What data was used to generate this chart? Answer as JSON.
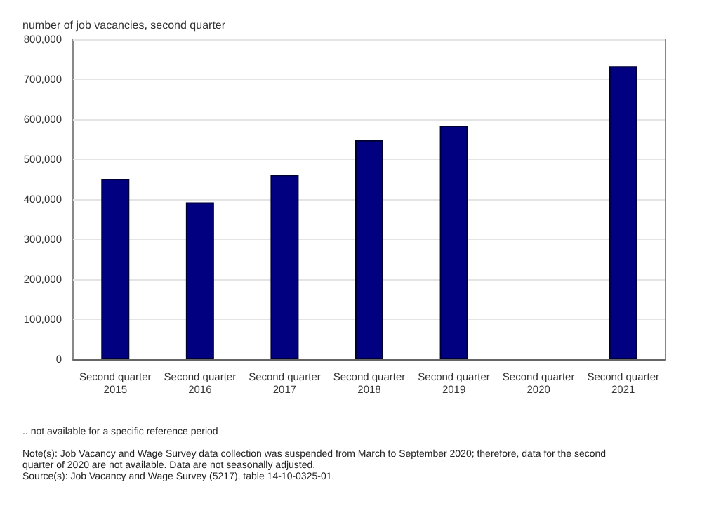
{
  "chart_data": {
    "type": "bar",
    "ylabel": "number of job vacancies, second quarter",
    "categories": [
      "Second quarter\n2015",
      "Second quarter\n2016",
      "Second quarter\n2017",
      "Second quarter\n2018",
      "Second quarter\n2019",
      "Second quarter\n2020",
      "Second quarter\n2021"
    ],
    "values": [
      451000,
      392000,
      461000,
      548000,
      584000,
      null,
      733000
    ],
    "color": "#000080",
    "ylim": [
      0,
      800000
    ],
    "yticks": [
      0,
      {
        "value": 100000,
        "label": "100,000"
      },
      {
        "value": 200000,
        "label": "200,000"
      },
      {
        "value": 300000,
        "label": "300,000"
      },
      {
        "value": 400000,
        "label": "400,000"
      },
      {
        "value": 500000,
        "label": "500,000"
      },
      {
        "value": 600000,
        "label": "600,000"
      },
      {
        "value": 700000,
        "label": "700,000"
      },
      {
        "value": 800000,
        "label": "800,000"
      }
    ],
    "grid": "y",
    "annotations": [
      ".. not available for a specific reference period",
      "Note(s): Job Vacancy and Wage Survey data collection was suspended from March to September 2020; therefore, data for the second quarter of 2020 are not available. Data are not seasonally adjusted.",
      "Source(s): Job Vacancy and Wage Survey (5217), table 14-10-0325-01."
    ]
  }
}
